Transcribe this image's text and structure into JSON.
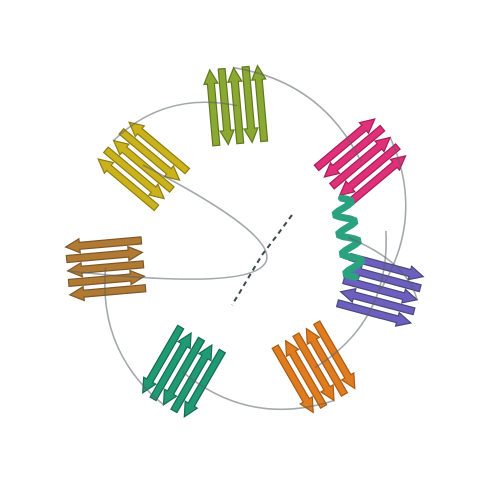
{
  "subject": "protein-ribbon-cartoon-ring",
  "background": "#ffffff",
  "domains": [
    {
      "name": "yellow-domain",
      "color": "#c9b21c",
      "shade": "#8f7d10"
    },
    {
      "name": "olive-domain",
      "color": "#8aa832",
      "shade": "#5f7a1e"
    },
    {
      "name": "magenta-domain",
      "color": "#e0307a",
      "shade": "#a81e58"
    },
    {
      "name": "slate-domain",
      "color": "#6c5fc0",
      "shade": "#474a7a"
    },
    {
      "name": "teal-domain",
      "color": "#2aa280",
      "shade": "#1b7760"
    },
    {
      "name": "orange-domain",
      "color": "#e07c20",
      "shade": "#a85a12"
    },
    {
      "name": "green-domain",
      "color": "#1f9a73",
      "shade": "#166b52"
    },
    {
      "name": "brown-domain",
      "color": "#b07a35",
      "shade": "#7f5826"
    }
  ],
  "loop_color": "#5a6068",
  "linker_color": "#3a4a4a"
}
